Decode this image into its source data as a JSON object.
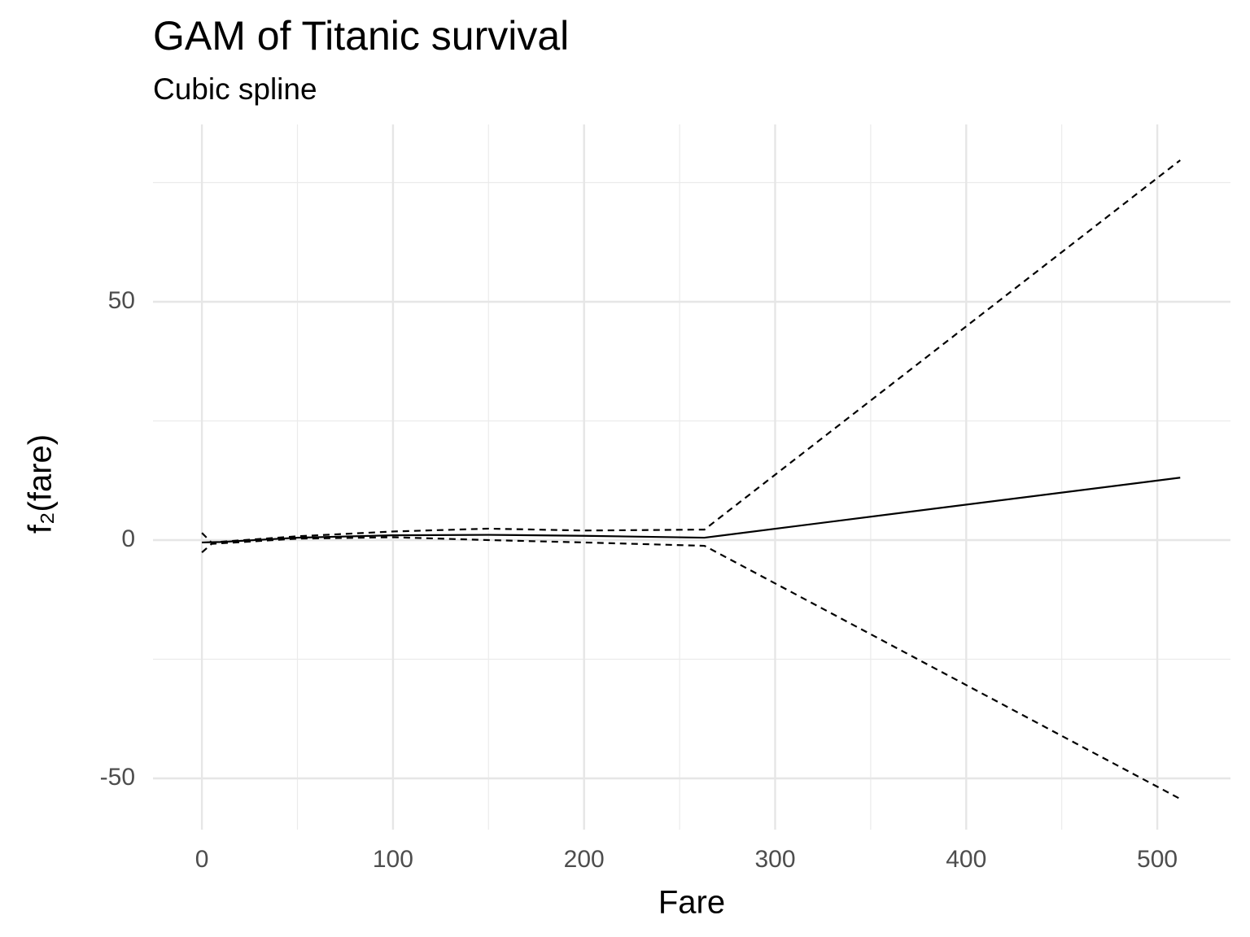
{
  "chart_data": {
    "type": "line",
    "title": "GAM of Titanic survival",
    "subtitle": "Cubic spline",
    "x_label": "Fare",
    "y_label": "f₂(fare)",
    "xlim": [
      -25.6,
      538.3
    ],
    "ylim": [
      -60.75,
      87.2
    ],
    "xticks": [
      0,
      100,
      200,
      300,
      400,
      500
    ],
    "yticks": [
      -50,
      0,
      50
    ],
    "x_minor_ticks": [
      50,
      150,
      250,
      350,
      450
    ],
    "y_minor_ticks": [
      -25,
      25,
      75
    ],
    "grid": true,
    "series": [
      {
        "color": "#000000",
        "style": "solid",
        "x": [
          0,
          10,
          50,
          100,
          150,
          200,
          263,
          512
        ],
        "values": [
          -0.5,
          -0.4,
          0.5,
          1,
          1.1,
          0.9,
          0.5,
          13.1
        ]
      },
      {
        "color": "#000000",
        "style": "dashed",
        "x": [
          0,
          5,
          50,
          100,
          150,
          200,
          263,
          512
        ],
        "values": [
          1.5,
          -0.5,
          0.8,
          1.8,
          2.4,
          2,
          2.2,
          79.7
        ]
      },
      {
        "color": "#000000",
        "style": "dashed",
        "x": [
          0,
          5,
          50,
          100,
          150,
          200,
          263,
          512
        ],
        "values": [
          -2.6,
          -0.8,
          0.3,
          0.6,
          0,
          -0.5,
          -1.2,
          -54.3
        ]
      }
    ]
  }
}
